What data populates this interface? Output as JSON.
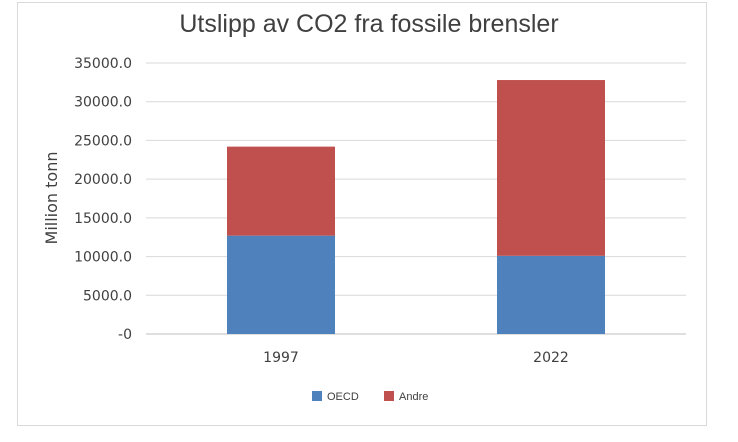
{
  "chart_data": {
    "type": "bar",
    "stacked": true,
    "title": "Utslipp av CO2 fra fossile brensler",
    "xlabel": "",
    "ylabel": "Million tonn",
    "categories": [
      "1997",
      "2022"
    ],
    "series": [
      {
        "name": "OECD",
        "color": "#4f81bd",
        "values": [
          12700,
          10100
        ]
      },
      {
        "name": "Andre",
        "color": "#c0504d",
        "values": [
          11500,
          22700
        ]
      }
    ],
    "ylim": [
      0,
      35000
    ],
    "y_ticks": [
      "-0",
      "5000.0",
      "10000.0",
      "15000.0",
      "20000.0",
      "25000.0",
      "30000.0",
      "35000.0"
    ],
    "grid": true,
    "legend": "bottom"
  }
}
